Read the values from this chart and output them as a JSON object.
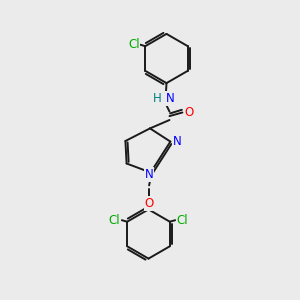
{
  "background_color": "#ebebeb",
  "bond_color": "#1a1a1a",
  "atom_colors": {
    "Cl": "#00aa00",
    "N": "#0000ff",
    "O": "#ff0000",
    "H": "#008080",
    "C": "#1a1a1a"
  },
  "font_size": 8.5,
  "lw": 1.4,
  "figsize": [
    3.0,
    3.0
  ],
  "dpi": 100
}
